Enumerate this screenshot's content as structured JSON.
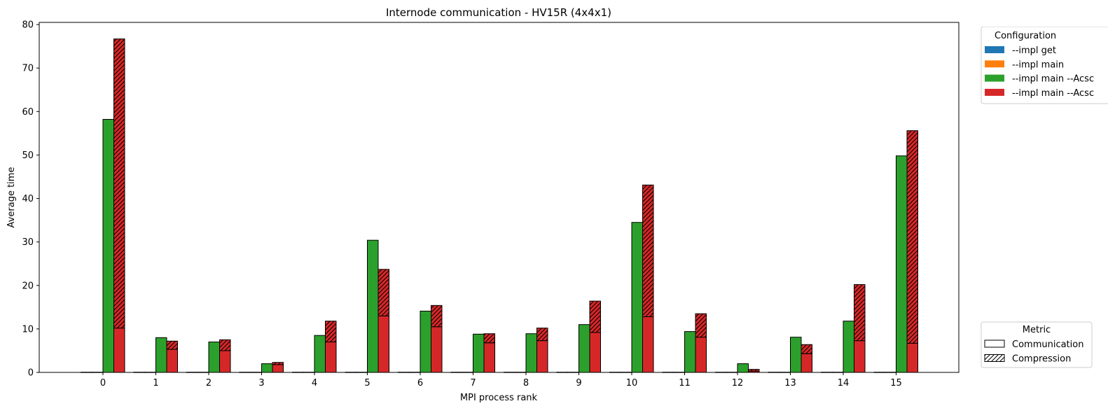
{
  "chart_data": {
    "type": "bar",
    "title": "Internode communication - HV15R (4x4x1)",
    "xlabel": "MPI process rank",
    "ylabel": "Average time",
    "ylim": [
      0,
      80.5
    ],
    "yticks": [
      0,
      10,
      20,
      30,
      40,
      50,
      60,
      70,
      80
    ],
    "categories": [
      "0",
      "1",
      "2",
      "3",
      "4",
      "5",
      "6",
      "7",
      "8",
      "9",
      "10",
      "11",
      "12",
      "13",
      "14",
      "15"
    ],
    "stacked": true,
    "grid": false,
    "series": [
      {
        "name": "--impl get",
        "color": "#1f77b4",
        "communication": [
          0.05,
          0.05,
          0.05,
          0.05,
          0.05,
          0.05,
          0.05,
          0.05,
          0.05,
          0.05,
          0.05,
          0.05,
          0.05,
          0.05,
          0.05,
          0.05
        ],
        "compression": [
          0,
          0,
          0,
          0,
          0,
          0,
          0,
          0,
          0,
          0,
          0,
          0,
          0,
          0,
          0,
          0
        ]
      },
      {
        "name": "--impl main",
        "color": "#ff7f0e",
        "communication": [
          0.05,
          0.05,
          0.05,
          0.05,
          0.05,
          0.05,
          0.05,
          0.05,
          0.05,
          0.05,
          0.05,
          0.05,
          0.05,
          0.05,
          0.05,
          0.05
        ],
        "compression": [
          0,
          0,
          0,
          0,
          0,
          0,
          0,
          0,
          0,
          0,
          0,
          0,
          0,
          0,
          0,
          0
        ]
      },
      {
        "name": "--impl main --Acsc",
        "color": "#2ca02c",
        "communication": [
          58.2,
          8.0,
          7.0,
          2.0,
          8.5,
          30.4,
          14.1,
          8.8,
          8.9,
          11.0,
          34.5,
          9.4,
          2.0,
          8.1,
          11.8,
          49.8
        ],
        "compression": [
          0,
          0,
          0,
          0,
          0,
          0,
          0,
          0,
          0,
          0,
          0,
          0,
          0,
          0,
          0,
          0
        ]
      },
      {
        "name": "--impl main --Acsc",
        "color": "#d62728",
        "communication": [
          10.2,
          5.3,
          5.0,
          1.8,
          7.0,
          13.0,
          10.5,
          6.8,
          7.3,
          9.2,
          12.8,
          8.1,
          0.3,
          4.3,
          7.3,
          6.7
        ],
        "compression": [
          66.5,
          1.9,
          2.5,
          0.5,
          4.8,
          10.7,
          4.9,
          2.1,
          2.9,
          7.2,
          30.3,
          5.4,
          0.4,
          2.1,
          12.9,
          48.9
        ]
      }
    ],
    "legend_config": {
      "title": "Configuration",
      "position": "upper-right-outside",
      "labels": [
        "--impl get",
        "--impl main",
        "--impl main --Acsc",
        "--impl main --Acsc"
      ]
    },
    "legend_metric": {
      "title": "Metric",
      "position": "lower-right-outside",
      "labels": [
        "Communication",
        "Compression"
      ]
    }
  }
}
